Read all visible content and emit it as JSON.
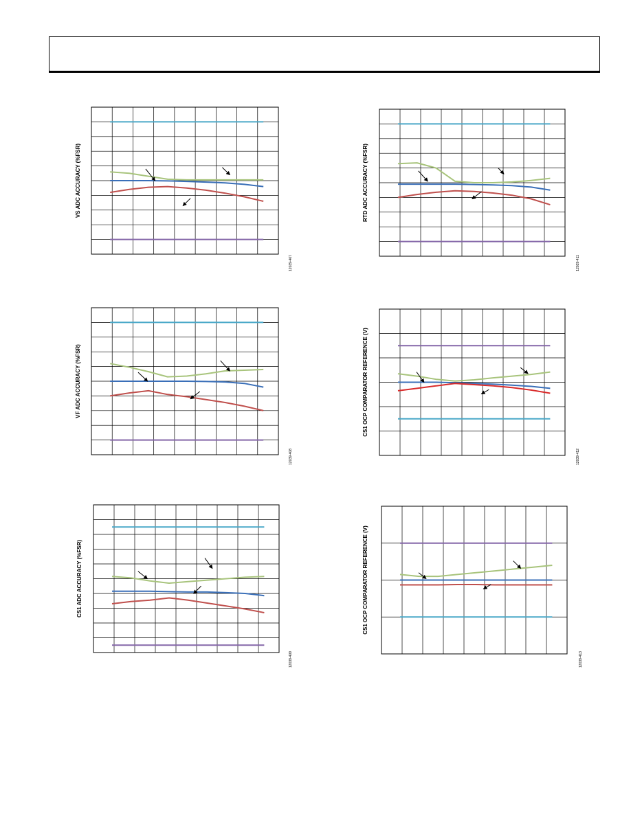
{
  "page": {
    "header_text": ""
  },
  "colors": {
    "cyan": "#4aa8c8",
    "green": "#a8c47c",
    "blue": "#3a6fb8",
    "red": "#c0504d",
    "red_bright": "#d92b2b",
    "purple": "#8466a8",
    "grid": "#000000"
  },
  "chart_data": [
    {
      "type": "line",
      "id": "vs",
      "ylabel": "VS ADC ACCURACY (%FSR)",
      "fig_id": "12039-407",
      "grid": true,
      "n_x_div": 9,
      "n_y_div": 10,
      "ylim": [
        0,
        10
      ],
      "x": [
        0,
        1,
        2,
        3,
        4,
        5,
        6,
        7,
        8
      ],
      "series": [
        {
          "color_key": "cyan",
          "values": [
            9.0,
            9.0,
            9.0,
            9.0,
            9.0,
            9.0,
            9.0,
            9.0,
            9.0
          ]
        },
        {
          "color_key": "green",
          "values": [
            5.6,
            5.5,
            5.3,
            5.1,
            5.05,
            5.05,
            5.05,
            5.05,
            5.05
          ]
        },
        {
          "color_key": "blue",
          "values": [
            5.0,
            5.0,
            5.0,
            4.98,
            4.95,
            4.9,
            4.85,
            4.75,
            4.6
          ]
        },
        {
          "color_key": "red",
          "values": [
            4.2,
            4.4,
            4.55,
            4.6,
            4.5,
            4.35,
            4.15,
            3.9,
            3.6
          ]
        },
        {
          "color_key": "purple",
          "values": [
            1.0,
            1.0,
            1.0,
            1.0,
            1.0,
            1.0,
            1.0,
            1.0,
            1.0
          ]
        }
      ]
    },
    {
      "type": "line",
      "id": "rtd",
      "ylabel": "RTD ADC ACCURACY (%FSR)",
      "fig_id": "12039-411",
      "grid": true,
      "n_x_div": 9,
      "n_y_div": 10,
      "ylim": [
        0,
        10
      ],
      "x": [
        0,
        1,
        2,
        3,
        4,
        5,
        6,
        7,
        8
      ],
      "series": [
        {
          "color_key": "cyan",
          "values": [
            9.0,
            9.0,
            9.0,
            9.0,
            9.0,
            9.0,
            9.0,
            9.0,
            9.0
          ]
        },
        {
          "color_key": "green",
          "values": [
            6.3,
            6.35,
            6.0,
            5.1,
            5.0,
            5.0,
            5.05,
            5.15,
            5.3
          ]
        },
        {
          "color_key": "blue",
          "values": [
            4.9,
            4.9,
            4.9,
            4.9,
            4.88,
            4.85,
            4.8,
            4.7,
            4.5
          ]
        },
        {
          "color_key": "red",
          "values": [
            4.0,
            4.2,
            4.35,
            4.45,
            4.4,
            4.3,
            4.15,
            3.9,
            3.5
          ]
        },
        {
          "color_key": "purple",
          "values": [
            1.0,
            1.0,
            1.0,
            1.0,
            1.0,
            1.0,
            1.0,
            1.0,
            1.0
          ]
        }
      ]
    },
    {
      "type": "line",
      "id": "vf",
      "ylabel": "VF ADC ACCURACY (%FSR)",
      "fig_id": "12039-408",
      "grid": true,
      "n_x_div": 9,
      "n_y_div": 10,
      "ylim": [
        0,
        10
      ],
      "x": [
        0,
        1,
        2,
        3,
        4,
        5,
        6,
        7,
        8
      ],
      "series": [
        {
          "color_key": "cyan",
          "values": [
            9.0,
            9.0,
            9.0,
            9.0,
            9.0,
            9.0,
            9.0,
            9.0,
            9.0
          ]
        },
        {
          "color_key": "green",
          "values": [
            6.2,
            5.95,
            5.65,
            5.3,
            5.35,
            5.5,
            5.7,
            5.75,
            5.8
          ]
        },
        {
          "color_key": "blue",
          "values": [
            5.0,
            5.0,
            5.0,
            5.0,
            5.0,
            4.98,
            4.95,
            4.85,
            4.6
          ]
        },
        {
          "color_key": "red",
          "values": [
            4.0,
            4.2,
            4.35,
            4.1,
            3.95,
            3.75,
            3.55,
            3.3,
            3.0
          ]
        },
        {
          "color_key": "purple",
          "values": [
            1.0,
            1.0,
            1.0,
            1.0,
            1.0,
            1.0,
            1.0,
            1.0,
            1.0
          ]
        }
      ]
    },
    {
      "type": "line",
      "id": "cs1ocp1",
      "ylabel": "CS1 OCP COMPARATOR REFERENCE (V)",
      "fig_id": "12039-412",
      "grid": true,
      "n_x_div": 9,
      "n_y_div": 6,
      "ylim": [
        0,
        6
      ],
      "x": [
        0,
        1,
        2,
        3,
        4,
        5,
        6,
        7,
        8
      ],
      "series": [
        {
          "color_key": "purple",
          "values": [
            4.5,
            4.5,
            4.5,
            4.5,
            4.5,
            4.5,
            4.5,
            4.5,
            4.5
          ]
        },
        {
          "color_key": "green",
          "values": [
            3.35,
            3.25,
            3.12,
            3.05,
            3.1,
            3.18,
            3.25,
            3.32,
            3.42
          ]
        },
        {
          "color_key": "blue",
          "values": [
            3.0,
            3.0,
            3.0,
            2.98,
            2.95,
            2.92,
            2.88,
            2.83,
            2.75
          ]
        },
        {
          "color_key": "red_bright",
          "values": [
            2.65,
            2.75,
            2.85,
            2.95,
            2.9,
            2.85,
            2.78,
            2.68,
            2.55
          ]
        },
        {
          "color_key": "cyan",
          "values": [
            1.5,
            1.5,
            1.5,
            1.5,
            1.5,
            1.5,
            1.5,
            1.5,
            1.5
          ]
        }
      ]
    },
    {
      "type": "line",
      "id": "cs1adc",
      "ylabel": "CS1 ADC ACCURACY (%FSR)",
      "fig_id": "12039-409",
      "grid": true,
      "n_x_div": 9,
      "n_y_div": 10,
      "ylim": [
        0,
        10
      ],
      "x": [
        0,
        1,
        2,
        3,
        4,
        5,
        6,
        7,
        8
      ],
      "series": [
        {
          "color_key": "cyan",
          "values": [
            8.5,
            8.5,
            8.5,
            8.5,
            8.5,
            8.5,
            8.5,
            8.5,
            8.5
          ]
        },
        {
          "color_key": "green",
          "values": [
            5.15,
            5.05,
            4.85,
            4.7,
            4.8,
            4.9,
            5.0,
            5.1,
            5.15
          ]
        },
        {
          "color_key": "blue",
          "values": [
            4.15,
            4.15,
            4.15,
            4.12,
            4.1,
            4.1,
            4.05,
            4.0,
            3.85
          ]
        },
        {
          "color_key": "red",
          "values": [
            3.3,
            3.45,
            3.55,
            3.7,
            3.55,
            3.35,
            3.15,
            2.95,
            2.7
          ]
        },
        {
          "color_key": "purple",
          "values": [
            0.5,
            0.5,
            0.5,
            0.5,
            0.5,
            0.5,
            0.5,
            0.5,
            0.5
          ]
        }
      ]
    },
    {
      "type": "line",
      "id": "cs1ocp2",
      "ylabel": "CS1 OCP COMPARATOR REFERENCE (V)",
      "fig_id": "12039-413",
      "grid": true,
      "n_x_div": 9,
      "n_y_div": 4,
      "ylim": [
        0,
        4
      ],
      "x": [
        0,
        1,
        2,
        3,
        4,
        5,
        6,
        7,
        8
      ],
      "series": [
        {
          "color_key": "purple",
          "values": [
            3.0,
            3.0,
            3.0,
            3.0,
            3.0,
            3.0,
            3.0,
            3.0,
            3.0
          ]
        },
        {
          "color_key": "green",
          "values": [
            2.15,
            2.1,
            2.1,
            2.15,
            2.2,
            2.25,
            2.3,
            2.35,
            2.4
          ]
        },
        {
          "color_key": "blue",
          "values": [
            2.0,
            2.0,
            2.0,
            2.0,
            2.0,
            2.0,
            2.0,
            2.0,
            2.0
          ]
        },
        {
          "color_key": "red",
          "values": [
            1.87,
            1.87,
            1.87,
            1.88,
            1.88,
            1.87,
            1.87,
            1.87,
            1.87
          ]
        },
        {
          "color_key": "cyan",
          "values": [
            1.0,
            1.0,
            1.0,
            1.0,
            1.0,
            1.0,
            1.0,
            1.0,
            1.0
          ]
        }
      ]
    }
  ]
}
